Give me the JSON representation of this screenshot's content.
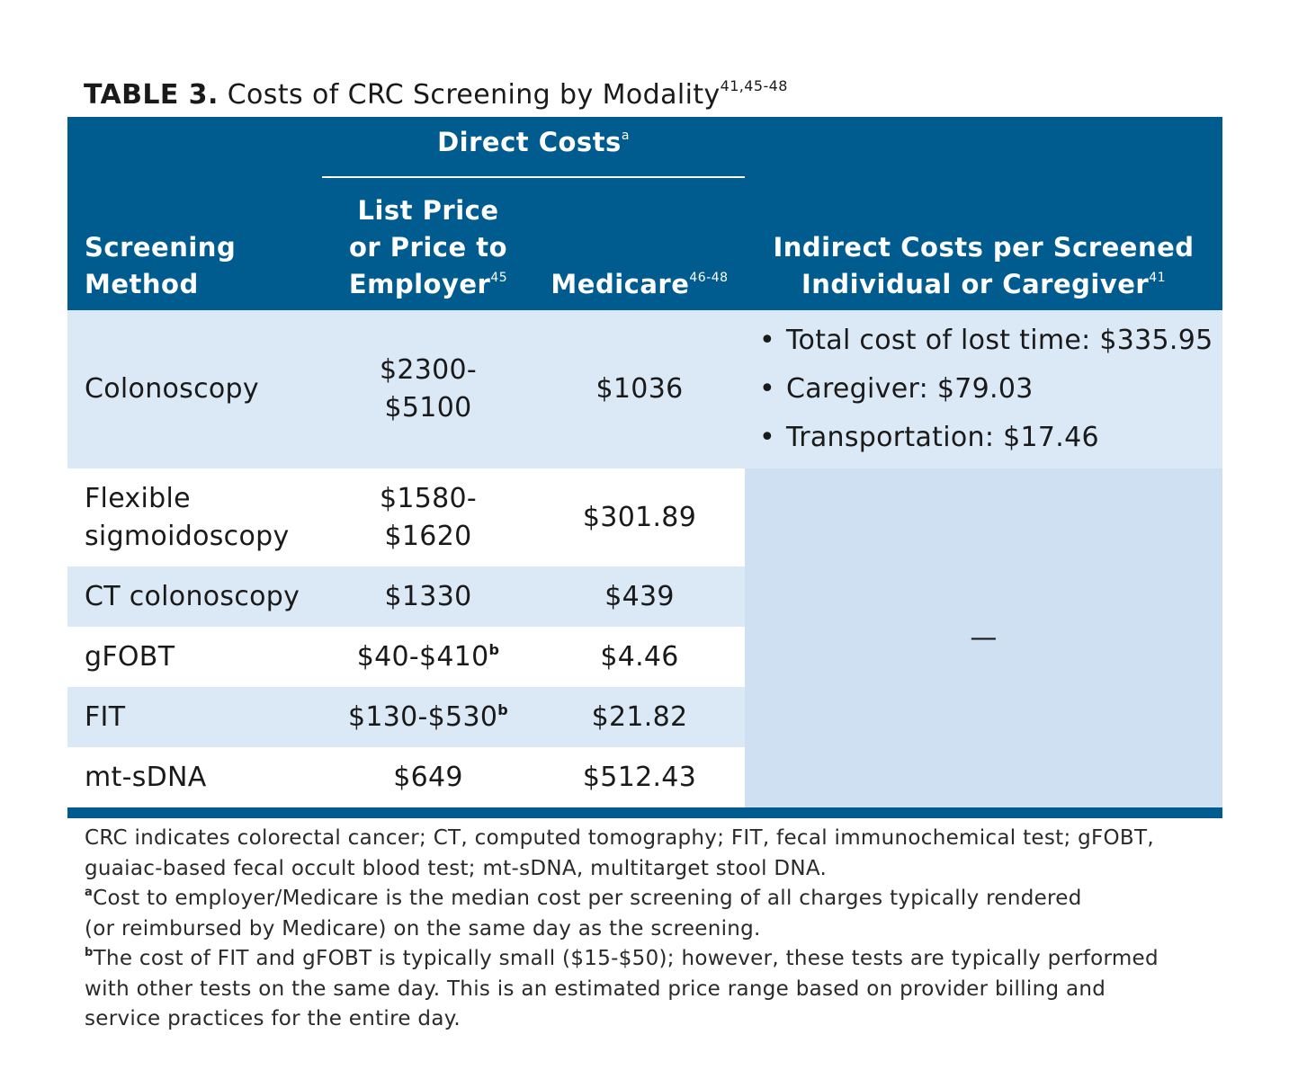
{
  "title": {
    "label": "TABLE 3.",
    "text": "Costs of CRC Screening by Modality",
    "refs": "41,45-48"
  },
  "header": {
    "direct_costs": "Direct Costs",
    "direct_costs_sup": "a",
    "screening_method": [
      "Screening",
      "Method"
    ],
    "list_price": [
      "List Price",
      "or Price to",
      "Employer"
    ],
    "list_price_sup": "45",
    "medicare": "Medicare",
    "medicare_sup": "46-48",
    "indirect": [
      "Indirect Costs per Screened",
      "Individual or Caregiver"
    ],
    "indirect_sup": "41"
  },
  "rows": [
    {
      "method": [
        "Colonoscopy"
      ],
      "list_price": [
        "$2300-",
        "$5100"
      ],
      "list_sup": "",
      "medicare": "$1036",
      "shade": true
    },
    {
      "method": [
        "Flexible",
        "sigmoidoscopy"
      ],
      "list_price": [
        "$1580-",
        "$1620"
      ],
      "list_sup": "",
      "medicare": "$301.89",
      "shade": false
    },
    {
      "method": [
        "CT colonoscopy"
      ],
      "list_price": [
        "$1330"
      ],
      "list_sup": "",
      "medicare": "$439",
      "shade": true
    },
    {
      "method": [
        "gFOBT"
      ],
      "list_price": [
        "$40-$410"
      ],
      "list_sup": "b",
      "medicare": "$4.46",
      "shade": false
    },
    {
      "method": [
        "FIT"
      ],
      "list_price": [
        "$130-$530"
      ],
      "list_sup": "b",
      "medicare": "$21.82",
      "shade": true
    },
    {
      "method": [
        "mt-sDNA"
      ],
      "list_price": [
        "$649"
      ],
      "list_sup": "",
      "medicare": "$512.43",
      "shade": false
    }
  ],
  "indirect_colonoscopy": [
    "Total cost of lost time: $335.95",
    "Caregiver: $79.03",
    "Transportation: $17.46"
  ],
  "indirect_other": "—",
  "notes": {
    "abbrev": [
      "CRC indicates colorectal cancer; CT, computed tomography; FIT, fecal immunochemical test; gFOBT,",
      "guaiac-based fecal occult blood test; mt-sDNA, multitarget stool DNA."
    ],
    "a_mark": "a",
    "a_text": [
      "Cost to employer/Medicare is the median cost per screening of all charges typically rendered",
      "(or reimbursed by Medicare) on the same day as the screening."
    ],
    "b_mark": "b",
    "b_text": [
      "The cost of FIT and gFOBT is typically small ($15-$50); however, these tests are typically performed",
      "with other tests on the same day. This is an estimated price range based on provider billing and",
      "service practices for the entire day."
    ]
  },
  "colors": {
    "header_bg": "#005b8f",
    "row_shade": "#dbe8f5",
    "indirect_merged_bg": "#cfe0f2"
  }
}
